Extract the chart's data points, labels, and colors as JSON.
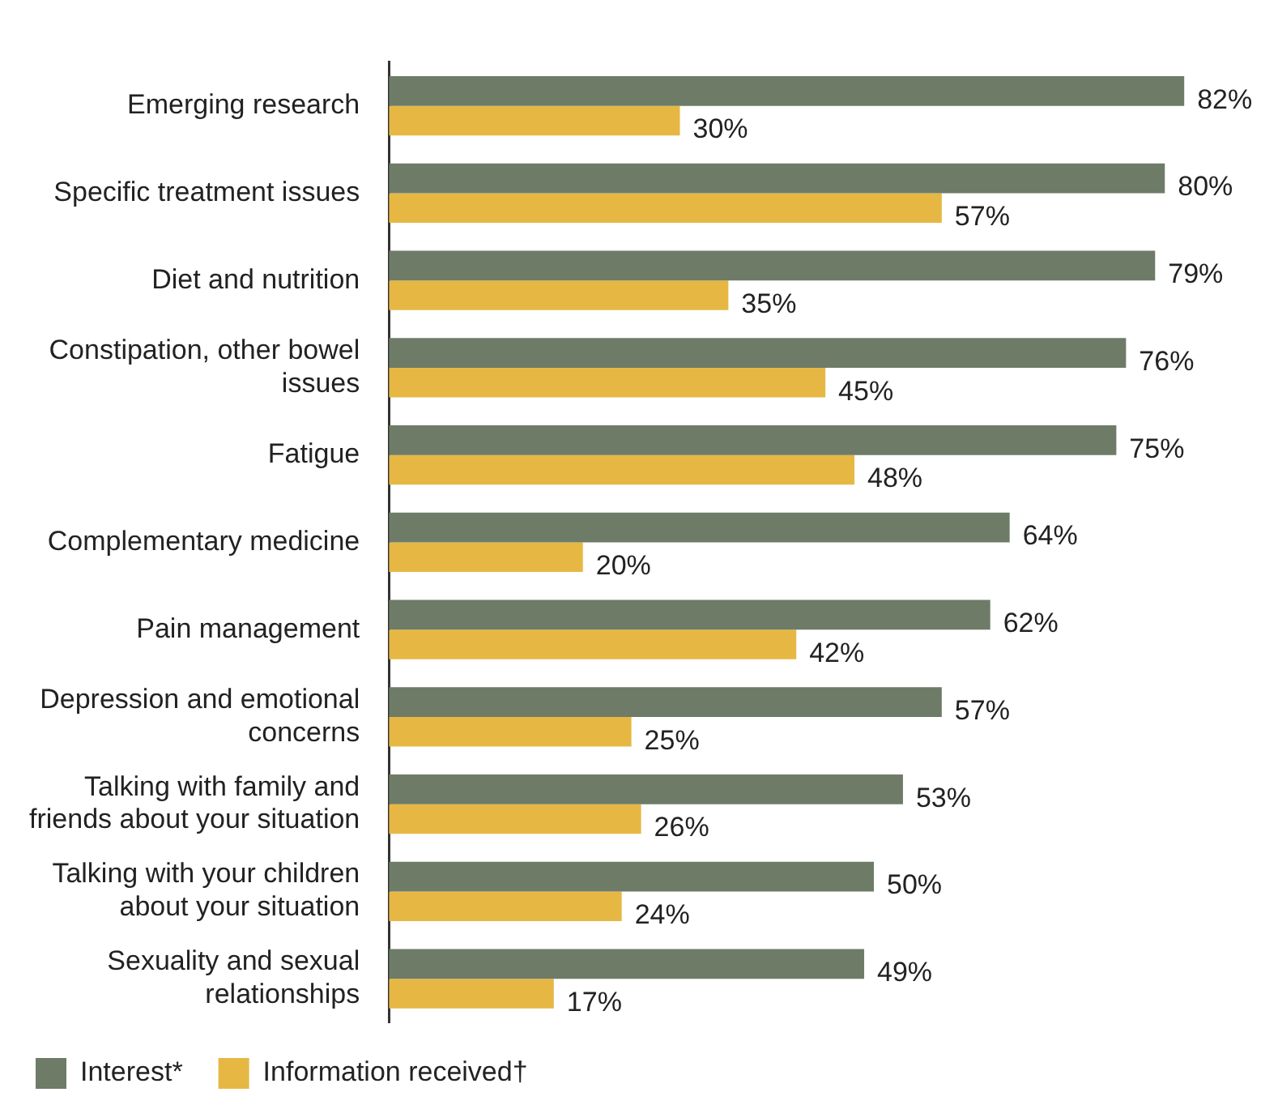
{
  "chart_data": {
    "type": "bar",
    "orientation": "horizontal",
    "categories": [
      "Emerging research",
      "Specific treatment issues",
      "Diet and nutrition",
      "Constipation, other bowel issues",
      "Fatigue",
      "Complementary medicine",
      "Pain management",
      "Depression and emotional concerns",
      "Talking with family and friends about your situation",
      "Talking with your children about your situation",
      "Sexuality and sexual relationships"
    ],
    "series": [
      {
        "name": "Interest*",
        "color": "#6e7b67",
        "values": [
          82,
          80,
          79,
          76,
          75,
          64,
          62,
          57,
          53,
          50,
          49
        ],
        "value_labels": [
          "82%",
          "80%",
          "79%",
          "76%",
          "75%",
          "64%",
          "62%",
          "57%",
          "53%",
          "50%",
          "49%"
        ]
      },
      {
        "name": "Information received†",
        "color": "#e6b843",
        "values": [
          30,
          57,
          35,
          45,
          48,
          20,
          42,
          25,
          26,
          24,
          17
        ],
        "value_labels": [
          "30%",
          "57%",
          "35%",
          "45%",
          "48%",
          "20%",
          "42%",
          "25%",
          "26%",
          "24%",
          "17%"
        ]
      }
    ],
    "legend": "bottom",
    "tick_labels": "y"
  }
}
